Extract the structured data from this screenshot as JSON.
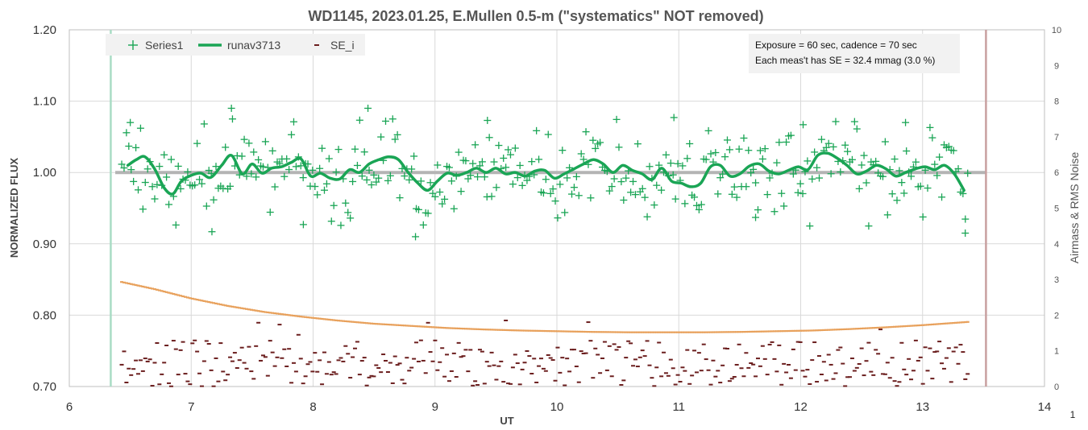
{
  "chart_data": {
    "type": "scatter",
    "title": "WD1145, 2023.01.25, E.Mullen 0.5-m (\"systematics\" NOT removed)",
    "xlabel": "UT",
    "ylabel": "NORMALIZED FLUX",
    "y2label": "Airmass & RMS Noise",
    "corner_label": "1",
    "xlim": [
      6,
      14
    ],
    "ylim": [
      0.7,
      1.2
    ],
    "y2lim": [
      0,
      10
    ],
    "x_ticks": [
      "6",
      "7",
      "8",
      "9",
      "10",
      "11",
      "12",
      "13",
      "14"
    ],
    "y_ticks": [
      "0.70",
      "0.80",
      "0.90",
      "1.00",
      "1.10",
      "1.20"
    ],
    "y2_ticks": [
      "0",
      "1",
      "2",
      "3",
      "4",
      "5",
      "6",
      "7",
      "8",
      "9",
      "10"
    ],
    "grid": true,
    "legend_position": "top-left",
    "legend": [
      {
        "name": "Series1",
        "marker": "plus",
        "color": "#1aa555"
      },
      {
        "name": "runav3713",
        "marker": "line",
        "color": "#1aa555"
      },
      {
        "name": "SE_i",
        "marker": "dash",
        "color": "#6b1e1e"
      }
    ],
    "annotation": [
      "Exposure = 60 sec, cadence = 70 sec",
      "Each  meas't has SE = 32.4 mmag (3.0 %)"
    ],
    "reference_line": {
      "y": 1.0,
      "color": "#b4b4b4"
    },
    "vertical_markers": [
      {
        "x": 6.34,
        "color": "#a9dcc5"
      },
      {
        "x": 13.52,
        "color": "#c8a0a0"
      }
    ],
    "series1": {
      "name": "Series1",
      "color": "#1aa555",
      "x_start": 6.43,
      "x_end": 13.37,
      "count": 360,
      "scatter_sigma": 0.03,
      "highlighted_points": [
        {
          "x": 6.5,
          "y": 1.07
        },
        {
          "x": 7.17,
          "y": 0.917
        },
        {
          "x": 7.33,
          "y": 1.09
        },
        {
          "x": 7.92,
          "y": 0.927
        },
        {
          "x": 8.45,
          "y": 1.09
        },
        {
          "x": 8.84,
          "y": 0.91
        },
        {
          "x": 9.43,
          "y": 1.073
        },
        {
          "x": 10.96,
          "y": 1.077
        },
        {
          "x": 11.63,
          "y": 0.937
        },
        {
          "x": 12.02,
          "y": 1.067
        },
        {
          "x": 12.86,
          "y": 1.07
        },
        {
          "x": 13.35,
          "y": 0.915
        }
      ]
    },
    "runav3713": {
      "name": "runav3713",
      "color": "#1aa555",
      "x": [
        6.48,
        6.55,
        6.62,
        6.7,
        6.78,
        6.85,
        6.92,
        7.0,
        7.08,
        7.16,
        7.25,
        7.33,
        7.42,
        7.5,
        7.58,
        7.66,
        7.74,
        7.82,
        7.9,
        7.98,
        8.06,
        8.14,
        8.22,
        8.3,
        8.38,
        8.46,
        8.54,
        8.62,
        8.7,
        8.78,
        8.86,
        8.94,
        9.02,
        9.1,
        9.18,
        9.26,
        9.34,
        9.42,
        9.5,
        9.58,
        9.66,
        9.74,
        9.82,
        9.9,
        9.98,
        10.06,
        10.14,
        10.22,
        10.3,
        10.38,
        10.46,
        10.54,
        10.62,
        10.7,
        10.78,
        10.86,
        10.94,
        11.02,
        11.1,
        11.18,
        11.26,
        11.34,
        11.42,
        11.5,
        11.58,
        11.66,
        11.74,
        11.82,
        11.9,
        11.98,
        12.06,
        12.14,
        12.22,
        12.3,
        12.38,
        12.46,
        12.54,
        12.62,
        12.7,
        12.78,
        12.86,
        12.94,
        13.02,
        13.1,
        13.18,
        13.26,
        13.34
      ],
      "y": [
        1.01,
        1.018,
        1.022,
        1.005,
        0.978,
        0.97,
        0.988,
        0.996,
        0.999,
        0.993,
        1.01,
        1.024,
        0.998,
        1.012,
        0.999,
        1.006,
        1.008,
        1.014,
        1.019,
        0.995,
        0.999,
        0.992,
        0.991,
        1.004,
        1.0,
        1.012,
        1.018,
        1.022,
        1.018,
        1.0,
        0.985,
        0.975,
        0.988,
        0.999,
        0.996,
        1.0,
        1.006,
        1.0,
        1.006,
        0.998,
        1.0,
        0.995,
        1.002,
        1.003,
        0.992,
        0.998,
        1.005,
        1.012,
        1.018,
        1.012,
        1.0,
        1.01,
        1.003,
        0.998,
        0.99,
        1.006,
        0.988,
        0.985,
        0.98,
        0.985,
        1.008,
        1.01,
        0.995,
        0.998,
        1.009,
        1.012,
        1.002,
        0.998,
        1.003,
        1.008,
        1.004,
        1.024,
        1.027,
        1.02,
        1.01,
        0.998,
        1.002,
        1.01,
        1.005,
        0.995,
        1.0,
        1.005,
        1.008,
        1.004,
        1.01,
        0.998,
        0.975
      ]
    },
    "airmass": {
      "color": "#e8a15c",
      "axis": "y2",
      "x": [
        6.43,
        6.7,
        7.0,
        7.3,
        7.6,
        7.9,
        8.2,
        8.5,
        8.8,
        9.1,
        9.4,
        9.7,
        10.0,
        10.3,
        10.6,
        10.9,
        11.2,
        11.5,
        11.8,
        12.1,
        12.4,
        12.7,
        13.0,
        13.37
      ],
      "y": [
        2.93,
        2.73,
        2.47,
        2.26,
        2.09,
        1.96,
        1.85,
        1.76,
        1.7,
        1.64,
        1.6,
        1.57,
        1.55,
        1.53,
        1.52,
        1.52,
        1.52,
        1.53,
        1.55,
        1.57,
        1.61,
        1.66,
        1.72,
        1.81
      ]
    },
    "se_i": {
      "name": "SE_i",
      "color": "#6b1e1e",
      "axis": "y2",
      "marker": "dash",
      "typical_range": [
        0.0,
        1.3
      ],
      "max": 1.92
    }
  }
}
